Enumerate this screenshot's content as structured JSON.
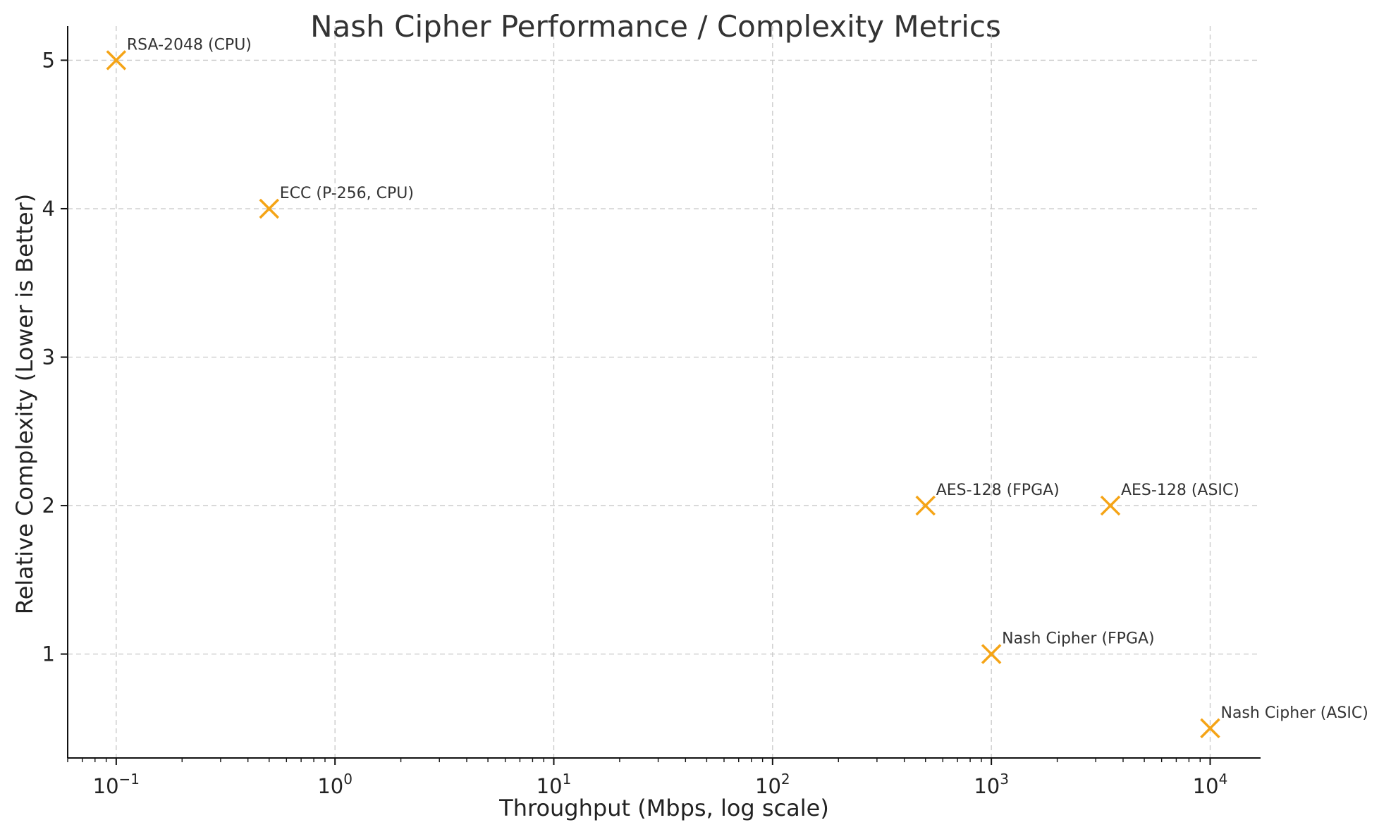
{
  "chart_data": {
    "type": "scatter",
    "title": "Nash Cipher Performance / Complexity Metrics",
    "xlabel": "Throughput (Mbps, log scale)",
    "ylabel": "Relative Complexity (Lower is Better)",
    "xscale": "log",
    "xlim": [
      0.06,
      17000
    ],
    "ylim": [
      0.3,
      5.23
    ],
    "grid": true,
    "x_ticks": [
      {
        "base": "10",
        "exp": "−1",
        "value": 0.1
      },
      {
        "base": "10",
        "exp": "0",
        "value": 1
      },
      {
        "base": "10",
        "exp": "1",
        "value": 10
      },
      {
        "base": "10",
        "exp": "2",
        "value": 100
      },
      {
        "base": "10",
        "exp": "3",
        "value": 1000
      },
      {
        "base": "10",
        "exp": "4",
        "value": 10000
      }
    ],
    "y_ticks": [
      {
        "label": "1",
        "value": 1
      },
      {
        "label": "2",
        "value": 2
      },
      {
        "label": "3",
        "value": 3
      },
      {
        "label": "4",
        "value": 4
      },
      {
        "label": "5",
        "value": 5
      }
    ],
    "marker": "x",
    "marker_color": "#f5a416",
    "points": [
      {
        "label": "RSA-2048 (CPU)",
        "x": 0.1,
        "y": 5
      },
      {
        "label": "ECC (P-256, CPU)",
        "x": 0.5,
        "y": 4
      },
      {
        "label": "AES-128 (FPGA)",
        "x": 500,
        "y": 2
      },
      {
        "label": "AES-128 (ASIC)",
        "x": 3500,
        "y": 2
      },
      {
        "label": "Nash Cipher (FPGA)",
        "x": 1000,
        "y": 1
      },
      {
        "label": "Nash Cipher (ASIC)",
        "x": 10000,
        "y": 0.5
      }
    ]
  }
}
